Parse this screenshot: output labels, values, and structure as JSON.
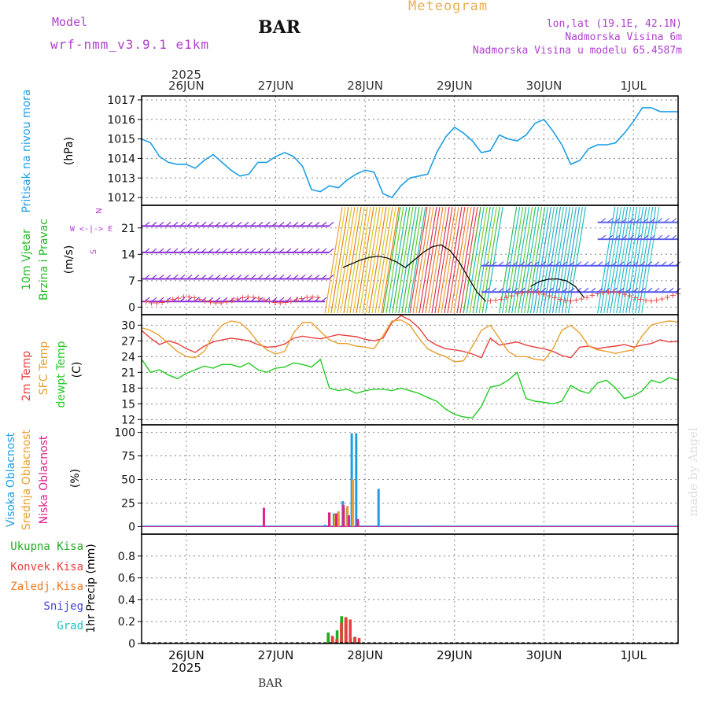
{
  "header": {
    "model_label": "Model",
    "model_name": "wrf-nmm_v3.9.1  e1km",
    "station": "BAR",
    "title": "Meteogram",
    "lonlat": "lon,lat (19.1E, 42.1N)",
    "elevation": "Nadmorska Visina 6m",
    "model_elevation": "Nadmorska Visina u modelu 65.4587m",
    "footer_station": "BAR",
    "watermark": "made by Angel"
  },
  "colors": {
    "pressure": "#1e9ee6",
    "wind_label": "#22bb22",
    "wind_speed_line": "#000000",
    "wind_speed_marker": "#e84040",
    "temp_2m": "#e84040",
    "temp_sfc": "#e8a030",
    "temp_dewpt": "#22cc22",
    "cloud_high": "#1e9ee6",
    "cloud_mid": "#e8a030",
    "cloud_low": "#e0208c",
    "precip_total": "#22aa22",
    "precip_conv": "#e84040",
    "precip_freezing": "#f07820",
    "precip_snow": "#4040e0",
    "precip_graupel": "#20c0c0",
    "header_purple": "#b040d0",
    "title_orange": "#e8b050",
    "grid": "#888888",
    "watermark": "#dddddd"
  },
  "time_axis": {
    "year": "2025",
    "dates": [
      "26JUN",
      "27JUN",
      "28JUN",
      "29JUN",
      "30JUN",
      "1JUL"
    ],
    "start_day": 25.5,
    "end_day": 31.5
  },
  "chart_data": [
    {
      "type": "line",
      "id": "pressure",
      "ylabel": "Pritisak na nivou mora",
      "unit": "(hPa)",
      "ylim": [
        1011.6,
        1017.2
      ],
      "yticks": [
        1012,
        1013,
        1014,
        1015,
        1016,
        1017
      ],
      "grid": true,
      "series": [
        {
          "color_key": "pressure",
          "x": [
            25.5,
            25.6,
            25.7,
            25.8,
            25.9,
            26.0,
            26.1,
            26.2,
            26.3,
            26.4,
            26.5,
            26.6,
            26.7,
            26.8,
            26.9,
            27.0,
            27.1,
            27.2,
            27.3,
            27.4,
            27.5,
            27.6,
            27.7,
            27.8,
            27.9,
            28.0,
            28.1,
            28.2,
            28.3,
            28.4,
            28.5,
            28.6,
            28.7,
            28.8,
            28.9,
            29.0,
            29.1,
            29.2,
            29.3,
            29.4,
            29.5,
            29.6,
            29.7,
            29.8,
            29.9,
            30.0,
            30.1,
            30.2,
            30.3,
            30.4,
            30.5,
            30.6,
            30.7,
            30.8,
            30.9,
            31.0,
            31.1,
            31.2,
            31.3,
            31.4,
            31.5
          ],
          "y": [
            1015.0,
            1014.8,
            1014.1,
            1013.8,
            1013.7,
            1013.7,
            1013.5,
            1013.9,
            1014.2,
            1013.8,
            1013.4,
            1013.1,
            1013.2,
            1013.8,
            1013.8,
            1014.1,
            1014.3,
            1014.1,
            1013.6,
            1012.4,
            1012.3,
            1012.6,
            1012.5,
            1012.9,
            1013.2,
            1013.4,
            1013.3,
            1012.2,
            1012.0,
            1012.6,
            1013.0,
            1013.1,
            1013.2,
            1014.3,
            1015.1,
            1015.6,
            1015.3,
            1014.9,
            1014.3,
            1014.4,
            1015.2,
            1015.0,
            1014.9,
            1015.2,
            1015.8,
            1016.0,
            1015.4,
            1014.7,
            1013.7,
            1013.9,
            1014.5,
            1014.7,
            1014.7,
            1014.8,
            1015.3,
            1015.9,
            1016.6,
            1016.6,
            1016.4,
            1016.4,
            1016.4
          ]
        }
      ]
    },
    {
      "type": "line",
      "id": "wind",
      "ylabel_lines": [
        "10m Vjetar",
        "Brzina i Pravac"
      ],
      "unit": "(m/s)",
      "compass": "N",
      "compass_lr": "W <-|-> E",
      "compass_s": "S",
      "ylim": [
        -2,
        27
      ],
      "yticks": [
        0,
        7,
        14,
        21
      ],
      "grid": true,
      "series": [
        {
          "name": "speed",
          "color_key": "wind_speed_line",
          "x": [
            27.75,
            27.85,
            27.95,
            28.05,
            28.15,
            28.25,
            28.35,
            28.45,
            28.55,
            28.65,
            28.75,
            28.85,
            28.95,
            29.05,
            29.15,
            29.25,
            29.35
          ],
          "y": [
            10.5,
            11.5,
            12.5,
            13.2,
            13.5,
            13.0,
            12.0,
            10.5,
            12.5,
            14.5,
            16.0,
            16.5,
            15.0,
            12.0,
            8.0,
            4.0,
            1.5
          ]
        },
        {
          "name": "speed-2",
          "color_key": "wind_speed_line",
          "x": [
            29.85,
            29.95,
            30.05,
            30.15,
            30.25,
            30.35,
            30.45
          ],
          "y": [
            5.5,
            6.8,
            7.4,
            7.5,
            7.0,
            5.5,
            2.5
          ]
        }
      ],
      "barbs": [
        {
          "x0": 25.5,
          "x1": 27.55,
          "y": 1.5,
          "color": "#8a30d8"
        },
        {
          "x0": 25.5,
          "x1": 27.6,
          "y": 7.5,
          "color": "#8a30d8"
        },
        {
          "x0": 25.5,
          "x1": 27.6,
          "y": 14.5,
          "color": "#8a30d8"
        },
        {
          "x0": 25.5,
          "x1": 27.6,
          "y": 21.5,
          "color": "#8a30d8"
        },
        {
          "x0": 29.3,
          "x1": 31.5,
          "y": 4.0,
          "color": "#5555ee"
        },
        {
          "x0": 29.3,
          "x1": 31.5,
          "y": 11.0,
          "color": "#5555ee"
        },
        {
          "x0": 30.6,
          "x1": 31.5,
          "y": 18.0,
          "color": "#6060e8"
        },
        {
          "x0": 30.6,
          "x1": 31.5,
          "y": 22.5,
          "color": "#6060e8"
        }
      ],
      "streaks": [
        {
          "x0": 27.55,
          "x1": 28.2,
          "colors": [
            "#e8a030",
            "#f4c020",
            "#e88020",
            "#c8d020"
          ]
        },
        {
          "x0": 28.2,
          "x1": 28.5,
          "colors": [
            "#30c040",
            "#60d020",
            "#20b8b0"
          ]
        },
        {
          "x0": 28.5,
          "x1": 29.1,
          "colors": [
            "#e84040",
            "#f07830",
            "#e8a030",
            "#d83060"
          ]
        },
        {
          "x0": 29.1,
          "x1": 29.35,
          "colors": [
            "#40c040",
            "#20c0c0",
            "#80d020"
          ]
        },
        {
          "x0": 29.5,
          "x1": 29.85,
          "colors": [
            "#30c060",
            "#20c0c0",
            "#60d040"
          ]
        },
        {
          "x0": 29.85,
          "x1": 30.3,
          "colors": [
            "#20c0c0",
            "#30a0e0",
            "#40c0a0"
          ]
        },
        {
          "x0": 30.6,
          "x1": 31.1,
          "colors": [
            "#20c0d0",
            "#30b0e0",
            "#40d0c0"
          ]
        }
      ]
    },
    {
      "type": "line",
      "id": "temperature",
      "ylabel_lines": [
        "2m Temp",
        "SFC Temp",
        "dewpt Temp"
      ],
      "unit": "(C)",
      "ylim": [
        11,
        32
      ],
      "yticks": [
        12,
        15,
        18,
        21,
        24,
        27,
        30
      ],
      "grid": true,
      "series": [
        {
          "name": "2m Temp",
          "color_key": "temp_2m",
          "x": [
            25.5,
            25.6,
            25.7,
            25.8,
            25.9,
            26.0,
            26.1,
            26.2,
            26.3,
            26.4,
            26.5,
            26.6,
            26.7,
            26.8,
            26.9,
            27.0,
            27.1,
            27.2,
            27.3,
            27.4,
            27.5,
            27.6,
            27.7,
            27.8,
            27.9,
            28.0,
            28.1,
            28.2,
            28.3,
            28.4,
            28.5,
            28.6,
            28.7,
            28.8,
            28.9,
            29.0,
            29.1,
            29.2,
            29.3,
            29.4,
            29.5,
            29.6,
            29.7,
            29.8,
            29.9,
            30.0,
            30.1,
            30.2,
            30.3,
            30.4,
            30.5,
            30.6,
            30.7,
            30.8,
            30.9,
            31.0,
            31.1,
            31.2,
            31.3,
            31.4,
            31.5
          ],
          "y": [
            29.0,
            27.5,
            26.3,
            27.0,
            26.5,
            25.5,
            24.8,
            26.0,
            26.8,
            27.2,
            27.5,
            27.3,
            27.0,
            26.3,
            25.8,
            25.9,
            26.4,
            27.5,
            27.9,
            27.6,
            27.4,
            27.8,
            28.2,
            28.0,
            27.8,
            27.3,
            27.0,
            27.5,
            30.5,
            31.8,
            31.0,
            29.5,
            27.2,
            26.2,
            25.5,
            25.3,
            25.0,
            24.5,
            23.8,
            27.5,
            26.2,
            26.5,
            26.8,
            26.2,
            25.8,
            25.5,
            25.0,
            24.2,
            23.8,
            25.8,
            26.0,
            25.5,
            25.8,
            26.0,
            26.3,
            25.8,
            26.2,
            26.5,
            27.2,
            26.8,
            26.9
          ]
        },
        {
          "name": "SFC Temp",
          "color_key": "temp_sfc",
          "x": [
            25.5,
            25.6,
            25.7,
            25.8,
            25.9,
            26.0,
            26.1,
            26.2,
            26.3,
            26.4,
            26.5,
            26.6,
            26.7,
            26.8,
            26.9,
            27.0,
            27.1,
            27.2,
            27.3,
            27.4,
            27.5,
            27.6,
            27.7,
            27.8,
            27.9,
            28.0,
            28.1,
            28.2,
            28.3,
            28.4,
            28.5,
            28.6,
            28.7,
            28.8,
            28.9,
            29.0,
            29.1,
            29.2,
            29.3,
            29.4,
            29.5,
            29.6,
            29.7,
            29.8,
            29.9,
            30.0,
            30.1,
            30.2,
            30.3,
            30.4,
            30.5,
            30.6,
            30.7,
            30.8,
            30.9,
            31.0,
            31.1,
            31.2,
            31.3,
            31.4,
            31.5
          ],
          "y": [
            29.5,
            29.0,
            28.0,
            26.5,
            25.0,
            24.0,
            23.8,
            25.0,
            28.0,
            30.0,
            30.8,
            30.5,
            29.0,
            26.8,
            25.3,
            24.5,
            25.0,
            28.5,
            30.5,
            30.5,
            28.8,
            27.2,
            26.5,
            26.5,
            26.0,
            25.8,
            25.5,
            28.0,
            30.8,
            31.0,
            30.0,
            27.5,
            25.5,
            24.6,
            24.0,
            23.0,
            23.2,
            26.0,
            29.0,
            30.0,
            27.5,
            25.0,
            24.0,
            24.0,
            23.5,
            23.3,
            25.5,
            29.0,
            30.0,
            28.5,
            26.0,
            25.3,
            25.0,
            24.6,
            25.0,
            25.3,
            28.0,
            30.0,
            30.5,
            30.8,
            30.6
          ]
        },
        {
          "name": "dewpt Temp",
          "color_key": "temp_dewpt",
          "x": [
            25.5,
            25.6,
            25.7,
            25.8,
            25.9,
            26.0,
            26.1,
            26.2,
            26.3,
            26.4,
            26.5,
            26.6,
            26.7,
            26.8,
            26.9,
            27.0,
            27.1,
            27.2,
            27.3,
            27.4,
            27.5,
            27.6,
            27.7,
            27.8,
            27.9,
            28.0,
            28.1,
            28.2,
            28.3,
            28.4,
            28.5,
            28.6,
            28.7,
            28.8,
            28.9,
            29.0,
            29.1,
            29.2,
            29.3,
            29.4,
            29.5,
            29.6,
            29.7,
            29.8,
            29.9,
            30.0,
            30.1,
            30.2,
            30.3,
            30.4,
            30.5,
            30.6,
            30.7,
            30.8,
            30.9,
            31.0,
            31.1,
            31.2,
            31.3,
            31.4,
            31.5
          ],
          "y": [
            23.5,
            21.0,
            21.5,
            20.5,
            19.8,
            20.8,
            21.5,
            22.2,
            21.8,
            22.5,
            22.5,
            22.0,
            22.8,
            21.5,
            21.0,
            21.8,
            22.0,
            22.8,
            22.5,
            22.0,
            23.5,
            18.0,
            17.5,
            17.8,
            17.0,
            17.5,
            17.8,
            17.8,
            17.5,
            18.0,
            17.5,
            17.0,
            16.2,
            15.5,
            14.0,
            13.0,
            12.5,
            12.3,
            14.5,
            18.2,
            18.5,
            19.5,
            21.0,
            16.0,
            15.5,
            15.3,
            15.0,
            15.5,
            18.5,
            17.5,
            17.0,
            19.0,
            19.5,
            18.0,
            16.0,
            16.5,
            17.5,
            19.5,
            19.0,
            20.0,
            19.5
          ]
        }
      ]
    },
    {
      "type": "bar",
      "id": "clouds",
      "ylabel_lines": [
        "Visoka Oblacnost",
        "Srednja Oblacnost",
        "Niska Oblacnost"
      ],
      "unit": "(%)",
      "ylim": [
        -8,
        108
      ],
      "yticks": [
        0,
        25,
        50,
        75,
        100
      ],
      "grid": true,
      "series": [
        {
          "name": "Visoka Oblacnost",
          "color_key": "cloud_high",
          "x": [
            27.55,
            27.6,
            27.65,
            27.7,
            27.75,
            27.8,
            27.85,
            27.9,
            28.15,
            28.55,
            28.6,
            28.65
          ],
          "values": [
            2,
            15,
            14,
            16,
            27,
            20,
            99,
            99,
            40,
            1,
            1,
            1
          ]
        },
        {
          "name": "Srednja Oblacnost",
          "color_key": "cloud_mid",
          "x": [
            27.62,
            27.68,
            27.72,
            27.78,
            27.82,
            27.88,
            27.94
          ],
          "values": [
            14,
            13,
            16,
            20,
            22,
            50,
            5
          ]
        },
        {
          "name": "Niska Oblacnost",
          "color_key": "cloud_low",
          "x": [
            26.85,
            27.58,
            27.66,
            27.74,
            27.8,
            27.9
          ],
          "values": [
            20,
            15,
            14,
            23,
            12,
            8
          ]
        }
      ]
    },
    {
      "type": "bar",
      "id": "precip",
      "ylabel": "1hr Precip (mm)",
      "ylim": [
        0,
        1.0
      ],
      "yticks": [
        0,
        0.2,
        0.4,
        0.6,
        0.8
      ],
      "ytick_labels": [
        "0",
        "0.2",
        "0.4",
        "0.6",
        "0.8"
      ],
      "grid": true,
      "legend_placement": "left",
      "series": [
        {
          "name": "Ukupna Kisa",
          "color_key": "precip_total",
          "x": [
            27.6,
            27.65,
            27.7,
            27.75,
            27.8,
            27.85,
            27.9
          ],
          "values": [
            0.1,
            0.06,
            0.12,
            0.25,
            0.24,
            0.05,
            0.06
          ]
        },
        {
          "name": "Konvek.Kisa",
          "color_key": "precip_conv",
          "x": [
            27.62,
            27.67,
            27.72,
            27.77,
            27.82,
            27.87,
            27.92
          ],
          "values": [
            0.07,
            0.04,
            0.19,
            0.24,
            0.22,
            0.06,
            0.05
          ]
        },
        {
          "name": "Zaledj.Kisa",
          "color_key": "precip_freezing",
          "x": [],
          "values": []
        },
        {
          "name": "Snijeg",
          "color_key": "precip_snow",
          "x": [],
          "values": []
        },
        {
          "name": "Grad",
          "color_key": "precip_graupel",
          "x": [],
          "values": []
        }
      ]
    }
  ]
}
